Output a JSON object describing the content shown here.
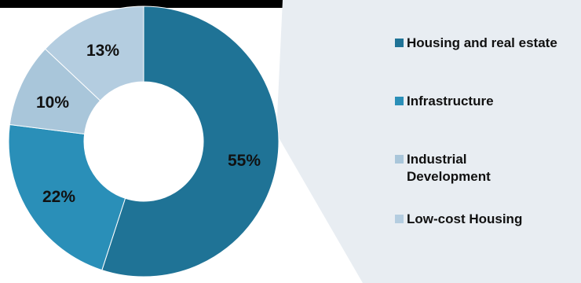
{
  "chart_data": {
    "type": "pie",
    "subtype": "donut",
    "categories": [
      "Housing and real estate",
      "Infrastructure",
      "Industrial Development",
      "Low-cost Housing"
    ],
    "values": [
      55,
      22,
      10,
      13
    ],
    "value_labels": [
      "55%",
      "22%",
      "10%",
      "13%"
    ],
    "colors": [
      "#1f7396",
      "#2a8fb8",
      "#a9c6da",
      "#b4cde0"
    ],
    "legend_colors": [
      "#1f7396",
      "#2a8fb8",
      "#a9c6da",
      "#b4cde0"
    ],
    "legend_position": "right",
    "callout_color": "#e8edf2",
    "title": "",
    "start_angle": "top",
    "direction": "clockwise"
  }
}
